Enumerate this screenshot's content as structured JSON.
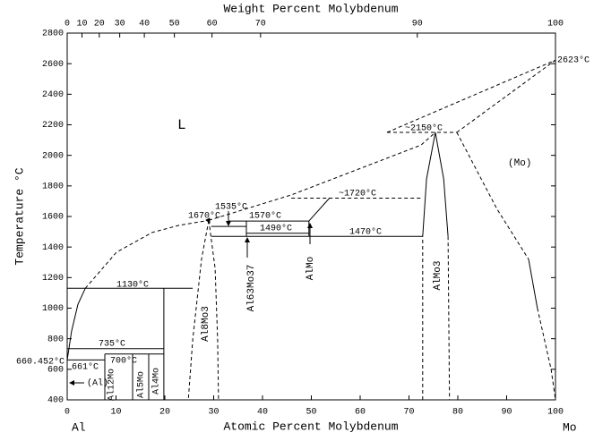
{
  "chart_data": {
    "type": "phase-diagram",
    "x_label": "Atomic Percent Molybdenum",
    "x_label_top": "Weight Percent Molybdenum",
    "y_label": "Temperature °C",
    "left_end": "Al",
    "right_end": "Mo",
    "xlim": [
      0,
      100
    ],
    "ylim": [
      400,
      2800
    ],
    "xticks": [
      0,
      10,
      20,
      30,
      40,
      50,
      60,
      70,
      80,
      90,
      100
    ],
    "yticks": [
      400,
      600,
      800,
      1000,
      1200,
      1400,
      1600,
      1800,
      2000,
      2200,
      2400,
      2600,
      2800
    ],
    "top_xticks": [
      {
        "value": 0,
        "label": "0"
      },
      {
        "value": 3.03,
        "label": "10"
      },
      {
        "value": 6.57,
        "label": "20"
      },
      {
        "value": 10.76,
        "label": "30"
      },
      {
        "value": 15.8,
        "label": "40"
      },
      {
        "value": 21.95,
        "label": "50"
      },
      {
        "value": 29.66,
        "label": "60"
      },
      {
        "value": 39.6,
        "label": "70"
      },
      {
        "value": 71.7,
        "label": "90"
      },
      {
        "value": 100,
        "label": "100"
      }
    ],
    "boundaries": [
      {
        "style": "solid",
        "x": [
          0,
          0.9,
          2.2,
          3.7
        ],
        "y": [
          660.452,
          850,
          1025,
          1130
        ]
      },
      {
        "style": "dashed",
        "x": [
          3.7,
          10.1,
          17.4,
          22.9,
          29.0
        ],
        "y": [
          1130,
          1366,
          1495,
          1542,
          1575
        ]
      },
      {
        "style": "dashed",
        "x": [
          29.0,
          27.5,
          25.7,
          24.8
        ],
        "y": [
          1575,
          1319,
          792,
          400
        ]
      },
      {
        "style": "dashed",
        "x": [
          29.0,
          30.3,
          30.8,
          31.0
        ],
        "y": [
          1575,
          1261,
          792,
          400
        ]
      },
      {
        "style": "dashed",
        "x": [
          29.0,
          45.9,
          72.5,
          75.4
        ],
        "y": [
          1575,
          1741,
          2068,
          2150
        ]
      },
      {
        "style": "dashed",
        "x": [
          65.5,
          79.8
        ],
        "y": [
          2150,
          2150
        ]
      },
      {
        "style": "dashed",
        "x": [
          65.5,
          100
        ],
        "y": [
          2150,
          2623
        ]
      },
      {
        "style": "dashed",
        "x": [
          79.8,
          100
        ],
        "y": [
          2150,
          2623
        ]
      },
      {
        "style": "dashed",
        "x": [
          72.8,
          72.8
        ],
        "y": [
          400,
          1470
        ]
      },
      {
        "style": "solid",
        "x": [
          72.8,
          73.6,
          75.4,
          77.1,
          78.0
        ],
        "y": [
          1470,
          1846,
          2150,
          1846,
          1470
        ]
      },
      {
        "style": "dashed",
        "x": [
          78.0,
          78.3
        ],
        "y": [
          1470,
          400
        ]
      },
      {
        "style": "dashed",
        "x": [
          79.8,
          88,
          94.5
        ],
        "y": [
          2150,
          1650,
          1320
        ]
      },
      {
        "style": "solid",
        "x": [
          94.5,
          96.3
        ],
        "y": [
          1320,
          1000
        ]
      },
      {
        "style": "dashed",
        "x": [
          96.3,
          99.1,
          100
        ],
        "y": [
          1000,
          600,
          400
        ]
      },
      {
        "style": "dashed",
        "x": [
          45.9,
          72.8
        ],
        "y": [
          1720,
          1720
        ]
      },
      {
        "style": "solid",
        "x": [
          53.7,
          49.5
        ],
        "y": [
          1720,
          1570
        ]
      },
      {
        "style": "solid",
        "x": [
          33.0,
          49.5
        ],
        "y": [
          1570,
          1570
        ]
      },
      {
        "style": "solid",
        "x": [
          29.5,
          36.7
        ],
        "y": [
          1535,
          1535
        ]
      },
      {
        "style": "solid",
        "x": [
          36.7,
          49.5
        ],
        "y": [
          1490,
          1490
        ]
      },
      {
        "style": "solid",
        "x": [
          29.5,
          72.8
        ],
        "y": [
          1470,
          1470
        ]
      },
      {
        "style": "solid",
        "x": [
          36.7,
          36.7
        ],
        "y": [
          1570,
          1470
        ]
      },
      {
        "style": "solid",
        "x": [
          49.5,
          49.5
        ],
        "y": [
          1570,
          1470
        ]
      },
      {
        "style": "solid",
        "x": [
          0,
          25.7
        ],
        "y": [
          1130,
          1130
        ]
      },
      {
        "style": "solid",
        "x": [
          19.8,
          19.8
        ],
        "y": [
          1130,
          400
        ]
      },
      {
        "style": "solid",
        "x": [
          0,
          19.8
        ],
        "y": [
          735,
          735
        ]
      },
      {
        "style": "solid",
        "x": [
          7.7,
          19.8
        ],
        "y": [
          700,
          700
        ]
      },
      {
        "style": "solid",
        "x": [
          0,
          7.7
        ],
        "y": [
          661,
          661
        ]
      },
      {
        "style": "solid",
        "x": [
          7.7,
          7.7
        ],
        "y": [
          700,
          400
        ]
      },
      {
        "style": "solid",
        "x": [
          13.4,
          13.4
        ],
        "y": [
          700,
          400
        ]
      },
      {
        "style": "solid",
        "x": [
          16.7,
          16.7
        ],
        "y": [
          700,
          400
        ]
      }
    ],
    "annotations": [
      "L",
      "(Mo)",
      "1130°C",
      "735°C",
      "661°C",
      "700°C",
      "1670°C",
      "1535°C",
      "1570°C",
      "1490°C",
      "1470°C",
      "~1720°C",
      "~2150°C",
      "2623°C",
      "660.452°C",
      "(Al)",
      "Al8Mo3",
      "Al63Mo37",
      "AlMo",
      "AlMo3",
      "Al12Mo",
      "Al5Mo",
      "Al4Mo"
    ]
  }
}
